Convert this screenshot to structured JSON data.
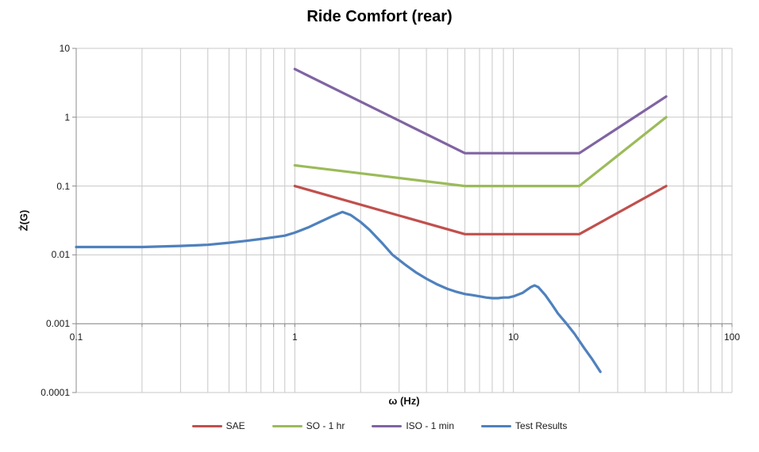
{
  "chart_data": {
    "type": "line",
    "title": "Ride Comfort (rear)",
    "xlabel": "ω (Hz)",
    "ylabel": "Ż(G)",
    "x_scale": "log",
    "y_scale": "log",
    "xlim": [
      0.1,
      100
    ],
    "ylim": [
      0.0001,
      10
    ],
    "x_tick_labels": [
      "0.1",
      "1",
      "10",
      "100"
    ],
    "y_tick_labels": [
      "10",
      "1",
      "0.1",
      "0.01",
      "0.001",
      "0.0001"
    ],
    "grid": "log-minor vertical gridlines, major horizontal gridlines",
    "legend_position": "bottom",
    "x_axis_crosses_at_y": 0.001,
    "series": [
      {
        "name": "SAE",
        "color": "#C0504D",
        "points": [
          [
            1,
            0.1
          ],
          [
            6,
            0.02
          ],
          [
            20,
            0.02
          ],
          [
            50,
            0.1
          ]
        ]
      },
      {
        "name": "SO - 1 hr",
        "color": "#9BBB59",
        "points": [
          [
            1,
            0.2
          ],
          [
            6,
            0.1
          ],
          [
            20,
            0.1
          ],
          [
            50,
            1
          ]
        ]
      },
      {
        "name": "ISO - 1 min",
        "color": "#8064A2",
        "points": [
          [
            1,
            5
          ],
          [
            6,
            0.3
          ],
          [
            20,
            0.3
          ],
          [
            50,
            2
          ]
        ]
      },
      {
        "name": "Test Results",
        "color": "#4F81BD",
        "points": [
          [
            0.1,
            0.013
          ],
          [
            0.15,
            0.013
          ],
          [
            0.2,
            0.013
          ],
          [
            0.3,
            0.0135
          ],
          [
            0.4,
            0.014
          ],
          [
            0.5,
            0.015
          ],
          [
            0.6,
            0.016
          ],
          [
            0.7,
            0.017
          ],
          [
            0.8,
            0.018
          ],
          [
            0.9,
            0.019
          ],
          [
            1.0,
            0.021
          ],
          [
            1.15,
            0.025
          ],
          [
            1.3,
            0.03
          ],
          [
            1.5,
            0.037
          ],
          [
            1.65,
            0.042
          ],
          [
            1.8,
            0.038
          ],
          [
            2.0,
            0.03
          ],
          [
            2.2,
            0.023
          ],
          [
            2.5,
            0.015
          ],
          [
            2.8,
            0.01
          ],
          [
            3.2,
            0.0072
          ],
          [
            3.6,
            0.0055
          ],
          [
            4.0,
            0.0045
          ],
          [
            4.5,
            0.0037
          ],
          [
            5.0,
            0.0032
          ],
          [
            5.5,
            0.0029
          ],
          [
            6.0,
            0.0027
          ],
          [
            6.5,
            0.0026
          ],
          [
            7.0,
            0.0025
          ],
          [
            7.5,
            0.0024
          ],
          [
            8.0,
            0.00235
          ],
          [
            8.5,
            0.00235
          ],
          [
            9.0,
            0.0024
          ],
          [
            9.5,
            0.0024
          ],
          [
            10.0,
            0.0025
          ],
          [
            11.0,
            0.0028
          ],
          [
            12.0,
            0.0034
          ],
          [
            12.5,
            0.0036
          ],
          [
            13.0,
            0.0034
          ],
          [
            14.0,
            0.0026
          ],
          [
            15.0,
            0.0019
          ],
          [
            16.0,
            0.0014
          ],
          [
            17.5,
            0.001
          ],
          [
            19.0,
            0.00072
          ],
          [
            21.0,
            0.00045
          ],
          [
            23.0,
            0.0003
          ],
          [
            25.0,
            0.0002
          ]
        ]
      }
    ]
  },
  "colors": {
    "background": "#FFFFFF",
    "gridline": "#C8C8C8",
    "axis_line": "#8C8C8C",
    "text": "#1a1a1a",
    "title_text": "#000000"
  }
}
